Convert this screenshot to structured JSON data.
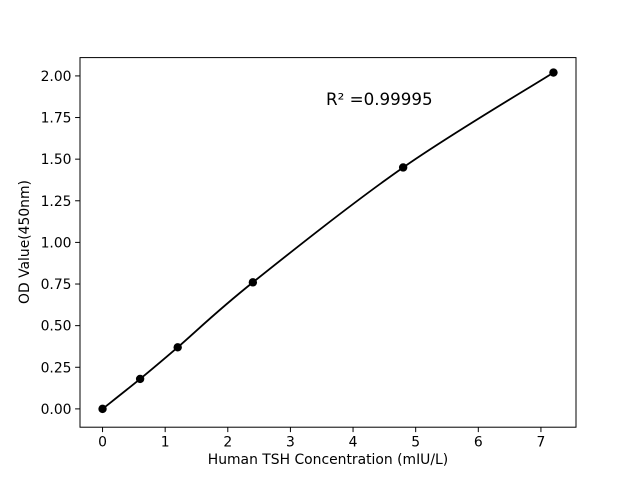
{
  "figure": {
    "background_color": "#ffffff",
    "foreground_color": "#000000"
  },
  "chart_data": {
    "type": "line",
    "title": "",
    "xlabel": "Human TSH Concentration (mIU/L)",
    "ylabel": "OD Value(450nm)",
    "x": [
      0,
      0.6,
      1.2,
      2.4,
      4.8,
      7.2
    ],
    "y": [
      0.0,
      0.18,
      0.37,
      0.76,
      1.45,
      2.02
    ],
    "xlim": [
      -0.36,
      7.56
    ],
    "ylim": [
      -0.11,
      2.11
    ],
    "xticks": [
      0,
      1,
      2,
      3,
      4,
      5,
      6,
      7
    ],
    "yticks": [
      0.0,
      0.25,
      0.5,
      0.75,
      1.0,
      1.25,
      1.5,
      1.75,
      2.0
    ],
    "ytick_decimals": 2,
    "grid": false,
    "legend": null,
    "line_color": "#000000",
    "line_width": 1.8,
    "marker": "circle",
    "marker_color": "#000000",
    "marker_radius": 4.2,
    "annotation": {
      "text": "R² =0.99995"
    }
  }
}
